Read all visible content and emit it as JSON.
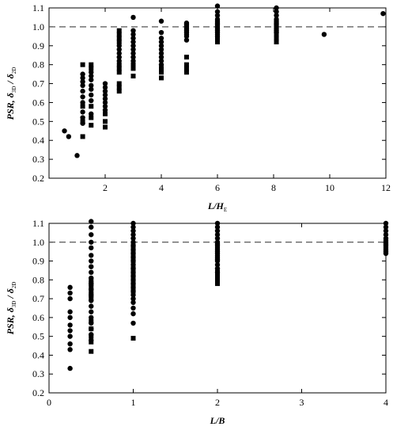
{
  "chart_data": [
    {
      "type": "scatter",
      "xlabel": "L/H",
      "xlabel_sub": "E",
      "ylabel": "PSR, δ",
      "ylabel_sub1": "3D",
      "ylabel_mid": " / δ",
      "ylabel_sub2": "2D",
      "xlim": [
        0,
        12
      ],
      "ylim": [
        0.2,
        1.1
      ],
      "xticks": [
        0,
        2,
        4,
        6,
        8,
        10,
        12
      ],
      "xtick_labels": [
        "",
        "2",
        "4",
        "6",
        "8",
        "10",
        "12"
      ],
      "yticks": [
        0.2,
        0.3,
        0.4,
        0.5,
        0.6,
        0.7,
        0.8,
        0.9,
        1.0,
        1.1
      ],
      "ytick_labels": [
        "0.2",
        "0.3",
        "0.4",
        "0.5",
        "0.6",
        "0.7",
        "0.8",
        "0.9",
        "1.0",
        "1.1"
      ],
      "reference_line": {
        "y": 1.0,
        "style": "dashed"
      },
      "grid": false,
      "series": [
        {
          "marker": "circle",
          "points": [
            [
              0.55,
              0.45
            ],
            [
              0.7,
              0.42
            ],
            [
              1.0,
              0.32
            ],
            [
              1.2,
              0.75
            ],
            [
              1.2,
              0.73
            ],
            [
              1.2,
              0.71
            ],
            [
              1.2,
              0.69
            ],
            [
              1.2,
              0.66
            ],
            [
              1.2,
              0.63
            ],
            [
              1.2,
              0.6
            ],
            [
              1.2,
              0.55
            ],
            [
              1.2,
              0.52
            ],
            [
              1.2,
              0.49
            ],
            [
              1.5,
              0.76
            ],
            [
              1.5,
              0.74
            ],
            [
              1.5,
              0.72
            ],
            [
              1.5,
              0.69
            ],
            [
              1.5,
              0.67
            ],
            [
              1.5,
              0.64
            ],
            [
              1.5,
              0.61
            ],
            [
              1.5,
              0.54
            ],
            [
              2.0,
              0.7
            ],
            [
              2.0,
              0.68
            ],
            [
              2.0,
              0.66
            ],
            [
              2.0,
              0.64
            ],
            [
              2.0,
              0.62
            ],
            [
              2.0,
              0.6
            ],
            [
              2.0,
              0.58
            ],
            [
              2.0,
              0.56
            ],
            [
              2.5,
              0.9
            ],
            [
              2.5,
              0.88
            ],
            [
              2.5,
              0.86
            ],
            [
              2.5,
              0.84
            ],
            [
              2.5,
              0.82
            ],
            [
              3.0,
              1.05
            ],
            [
              3.0,
              0.98
            ],
            [
              3.0,
              0.96
            ],
            [
              3.0,
              0.94
            ],
            [
              3.0,
              0.92
            ],
            [
              3.0,
              0.9
            ],
            [
              3.0,
              0.88
            ],
            [
              3.0,
              0.86
            ],
            [
              3.0,
              0.84
            ],
            [
              3.0,
              0.82
            ],
            [
              4.0,
              1.03
            ],
            [
              4.0,
              0.97
            ],
            [
              4.0,
              0.94
            ],
            [
              4.0,
              0.92
            ],
            [
              4.0,
              0.9
            ],
            [
              4.0,
              0.88
            ],
            [
              4.0,
              0.86
            ],
            [
              4.0,
              0.84
            ],
            [
              4.0,
              0.82
            ],
            [
              4.0,
              0.8
            ],
            [
              4.9,
              1.02
            ],
            [
              4.9,
              1.01
            ],
            [
              4.9,
              1.0
            ],
            [
              4.9,
              0.99
            ],
            [
              4.9,
              0.98
            ],
            [
              4.9,
              0.97
            ],
            [
              4.9,
              0.96
            ],
            [
              4.9,
              0.95
            ],
            [
              4.9,
              0.93
            ],
            [
              6.0,
              1.11
            ],
            [
              6.0,
              1.08
            ],
            [
              6.0,
              1.06
            ],
            [
              6.0,
              1.04
            ],
            [
              6.0,
              1.03
            ],
            [
              6.0,
              1.02
            ],
            [
              6.0,
              1.01
            ],
            [
              6.0,
              1.0
            ],
            [
              6.0,
              0.99
            ],
            [
              6.0,
              0.98
            ],
            [
              6.0,
              0.97
            ],
            [
              6.0,
              0.96
            ],
            [
              6.0,
              0.95
            ],
            [
              8.1,
              1.1
            ],
            [
              8.1,
              1.08
            ],
            [
              8.1,
              1.06
            ],
            [
              8.1,
              1.04
            ],
            [
              8.1,
              1.03
            ],
            [
              8.1,
              1.02
            ],
            [
              8.1,
              1.01
            ],
            [
              8.1,
              1.0
            ],
            [
              8.1,
              0.99
            ],
            [
              8.1,
              0.98
            ],
            [
              8.1,
              0.97
            ],
            [
              9.8,
              0.96
            ],
            [
              11.9,
              1.07
            ]
          ]
        },
        {
          "marker": "square",
          "points": [
            [
              1.2,
              0.8
            ],
            [
              1.2,
              0.58
            ],
            [
              1.2,
              0.5
            ],
            [
              1.2,
              0.42
            ],
            [
              1.5,
              0.8
            ],
            [
              1.5,
              0.78
            ],
            [
              1.5,
              0.58
            ],
            [
              1.5,
              0.52
            ],
            [
              1.5,
              0.48
            ],
            [
              2.0,
              0.54
            ],
            [
              2.0,
              0.5
            ],
            [
              2.0,
              0.47
            ],
            [
              2.5,
              0.98
            ],
            [
              2.5,
              0.96
            ],
            [
              2.5,
              0.94
            ],
            [
              2.5,
              0.92
            ],
            [
              2.5,
              0.8
            ],
            [
              2.5,
              0.78
            ],
            [
              2.5,
              0.76
            ],
            [
              2.5,
              0.7
            ],
            [
              2.5,
              0.68
            ],
            [
              2.5,
              0.66
            ],
            [
              3.0,
              0.8
            ],
            [
              3.0,
              0.78
            ],
            [
              3.0,
              0.74
            ],
            [
              4.0,
              0.78
            ],
            [
              4.0,
              0.76
            ],
            [
              4.0,
              0.73
            ],
            [
              4.9,
              0.84
            ],
            [
              4.9,
              0.8
            ],
            [
              4.9,
              0.78
            ],
            [
              4.9,
              0.76
            ],
            [
              6.0,
              0.94
            ],
            [
              6.0,
              0.92
            ],
            [
              8.1,
              0.96
            ],
            [
              8.1,
              0.94
            ],
            [
              8.1,
              0.92
            ]
          ]
        }
      ]
    },
    {
      "type": "scatter",
      "xlabel": "L/B",
      "xlabel_sub": "",
      "ylabel": "PSR, δ",
      "ylabel_sub1": "3D",
      "ylabel_mid": " / δ",
      "ylabel_sub2": "2D",
      "xlim": [
        0,
        4
      ],
      "ylim": [
        0.2,
        1.1
      ],
      "xticks": [
        0,
        1,
        2,
        3,
        4
      ],
      "xtick_labels": [
        "0",
        "1",
        "2",
        "3",
        "4"
      ],
      "yticks": [
        0.2,
        0.3,
        0.4,
        0.5,
        0.6,
        0.7,
        0.8,
        0.9,
        1.0,
        1.1
      ],
      "ytick_labels": [
        "0.2",
        "0.3",
        "0.4",
        "0.5",
        "0.6",
        "0.7",
        "0.8",
        "0.9",
        "1.0",
        "1.1"
      ],
      "reference_line": {
        "y": 1.0,
        "style": "dashed"
      },
      "grid": false,
      "series": [
        {
          "marker": "circle",
          "points": [
            [
              0.25,
              0.76
            ],
            [
              0.25,
              0.73
            ],
            [
              0.25,
              0.7
            ],
            [
              0.25,
              0.63
            ],
            [
              0.25,
              0.6
            ],
            [
              0.25,
              0.56
            ],
            [
              0.25,
              0.53
            ],
            [
              0.25,
              0.5
            ],
            [
              0.25,
              0.46
            ],
            [
              0.25,
              0.43
            ],
            [
              0.25,
              0.33
            ],
            [
              0.5,
              1.11
            ],
            [
              0.5,
              1.08
            ],
            [
              0.5,
              1.04
            ],
            [
              0.5,
              1.0
            ],
            [
              0.5,
              0.97
            ],
            [
              0.5,
              0.93
            ],
            [
              0.5,
              0.9
            ],
            [
              0.5,
              0.87
            ],
            [
              0.5,
              0.84
            ],
            [
              0.5,
              0.81
            ],
            [
              0.5,
              0.78
            ],
            [
              0.5,
              0.75
            ],
            [
              0.5,
              0.72
            ],
            [
              0.5,
              0.69
            ],
            [
              0.5,
              0.66
            ],
            [
              0.5,
              0.63
            ],
            [
              0.5,
              0.6
            ],
            [
              0.5,
              0.57
            ],
            [
              0.5,
              0.54
            ],
            [
              0.5,
              0.51
            ],
            [
              0.5,
              0.48
            ],
            [
              1.0,
              1.1
            ],
            [
              1.0,
              1.08
            ],
            [
              1.0,
              1.06
            ],
            [
              1.0,
              1.04
            ],
            [
              1.0,
              1.02
            ],
            [
              1.0,
              1.0
            ],
            [
              1.0,
              0.98
            ],
            [
              1.0,
              0.96
            ],
            [
              1.0,
              0.94
            ],
            [
              1.0,
              0.92
            ],
            [
              1.0,
              0.9
            ],
            [
              1.0,
              0.88
            ],
            [
              1.0,
              0.86
            ],
            [
              1.0,
              0.84
            ],
            [
              1.0,
              0.82
            ],
            [
              1.0,
              0.8
            ],
            [
              1.0,
              0.78
            ],
            [
              1.0,
              0.76
            ],
            [
              1.0,
              0.74
            ],
            [
              1.0,
              0.72
            ],
            [
              1.0,
              0.7
            ],
            [
              1.0,
              0.68
            ],
            [
              1.0,
              0.65
            ],
            [
              1.0,
              0.62
            ],
            [
              1.0,
              0.57
            ],
            [
              2.0,
              1.1
            ],
            [
              2.0,
              1.08
            ],
            [
              2.0,
              1.06
            ],
            [
              2.0,
              1.04
            ],
            [
              2.0,
              1.02
            ],
            [
              2.0,
              1.0
            ],
            [
              2.0,
              0.99
            ],
            [
              2.0,
              0.98
            ],
            [
              2.0,
              0.97
            ],
            [
              2.0,
              0.96
            ],
            [
              2.0,
              0.95
            ],
            [
              2.0,
              0.94
            ],
            [
              2.0,
              0.93
            ],
            [
              2.0,
              0.92
            ],
            [
              2.0,
              0.91
            ],
            [
              2.0,
              0.9
            ],
            [
              2.0,
              0.88
            ],
            [
              2.0,
              0.86
            ],
            [
              2.0,
              0.84
            ],
            [
              4.0,
              1.1
            ],
            [
              4.0,
              1.08
            ],
            [
              4.0,
              1.06
            ],
            [
              4.0,
              1.04
            ],
            [
              4.0,
              1.02
            ],
            [
              4.0,
              1.01
            ],
            [
              4.0,
              1.0
            ],
            [
              4.0,
              0.99
            ],
            [
              4.0,
              0.98
            ],
            [
              4.0,
              0.97
            ],
            [
              4.0,
              0.96
            ],
            [
              4.0,
              0.95
            ],
            [
              4.0,
              0.94
            ]
          ]
        },
        {
          "marker": "square",
          "points": [
            [
              0.5,
              0.8
            ],
            [
              0.5,
              0.78
            ],
            [
              0.5,
              0.76
            ],
            [
              0.5,
              0.74
            ],
            [
              0.5,
              0.72
            ],
            [
              0.5,
              0.7
            ],
            [
              0.5,
              0.58
            ],
            [
              0.5,
              0.54
            ],
            [
              0.5,
              0.5
            ],
            [
              0.5,
              0.47
            ],
            [
              0.5,
              0.42
            ],
            [
              1.0,
              0.98
            ],
            [
              1.0,
              0.96
            ],
            [
              1.0,
              0.94
            ],
            [
              1.0,
              0.92
            ],
            [
              1.0,
              0.9
            ],
            [
              1.0,
              0.86
            ],
            [
              1.0,
              0.84
            ],
            [
              1.0,
              0.82
            ],
            [
              1.0,
              0.8
            ],
            [
              1.0,
              0.78
            ],
            [
              1.0,
              0.76
            ],
            [
              1.0,
              0.74
            ],
            [
              1.0,
              0.49
            ],
            [
              2.0,
              0.94
            ],
            [
              2.0,
              0.92
            ],
            [
              2.0,
              0.84
            ],
            [
              2.0,
              0.82
            ],
            [
              2.0,
              0.8
            ],
            [
              2.0,
              0.78
            ],
            [
              4.0,
              0.98
            ],
            [
              4.0,
              0.96
            ]
          ]
        }
      ]
    }
  ]
}
